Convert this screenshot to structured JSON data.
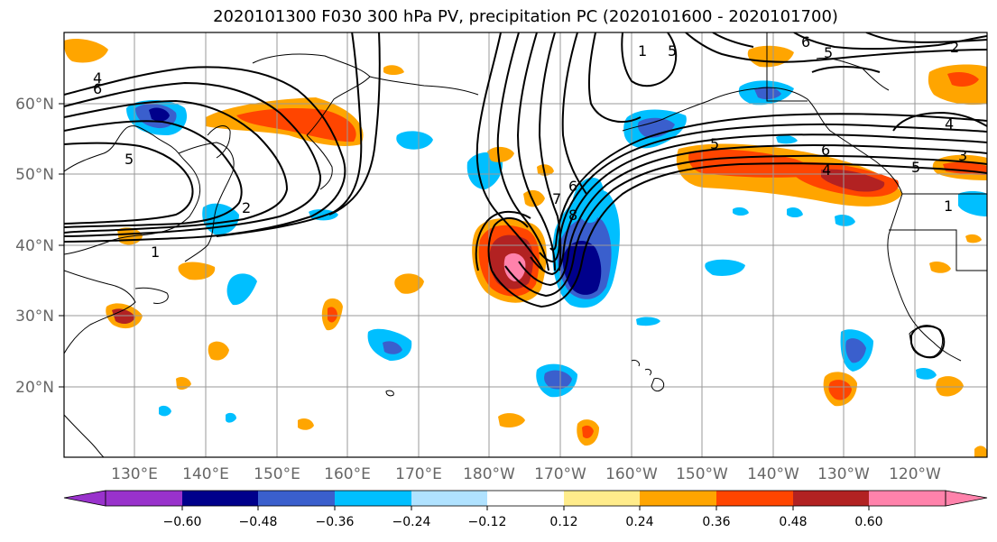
{
  "title": "2020101300 F030 300 hPa PV, precipitation PC (2020101600 - 2020101700)",
  "lat_labels": [
    "60°N",
    "50°N",
    "40°N",
    "30°N",
    "20°N"
  ],
  "lon_labels": [
    "130°E",
    "140°E",
    "150°E",
    "160°E",
    "170°E",
    "180°W",
    "170°W",
    "160°W",
    "150°W",
    "140°W",
    "130°W",
    "120°W"
  ],
  "colorbar": {
    "ticks": [
      "−0.60",
      "−0.48",
      "−0.36",
      "−0.24",
      "−0.12",
      "0.12",
      "0.24",
      "0.36",
      "0.48",
      "0.60"
    ],
    "colors": [
      "#9932cc",
      "#00008b",
      "#3a5fcd",
      "#00bfff",
      "#b0e2ff",
      "#ffffff",
      "#ffec8b",
      "#ffa500",
      "#ff4500",
      "#b22222",
      "#ff82ab"
    ]
  },
  "contour_labels": [
    "4",
    "6",
    "5",
    "1",
    "2",
    "1",
    "5",
    "6",
    "7",
    "6",
    "5",
    "2",
    "4",
    "3",
    "5",
    "1",
    "6",
    "4",
    "5",
    "8"
  ],
  "colors": {
    "land_outline": "#000000",
    "grid": "#999999",
    "contour": "#000000"
  }
}
